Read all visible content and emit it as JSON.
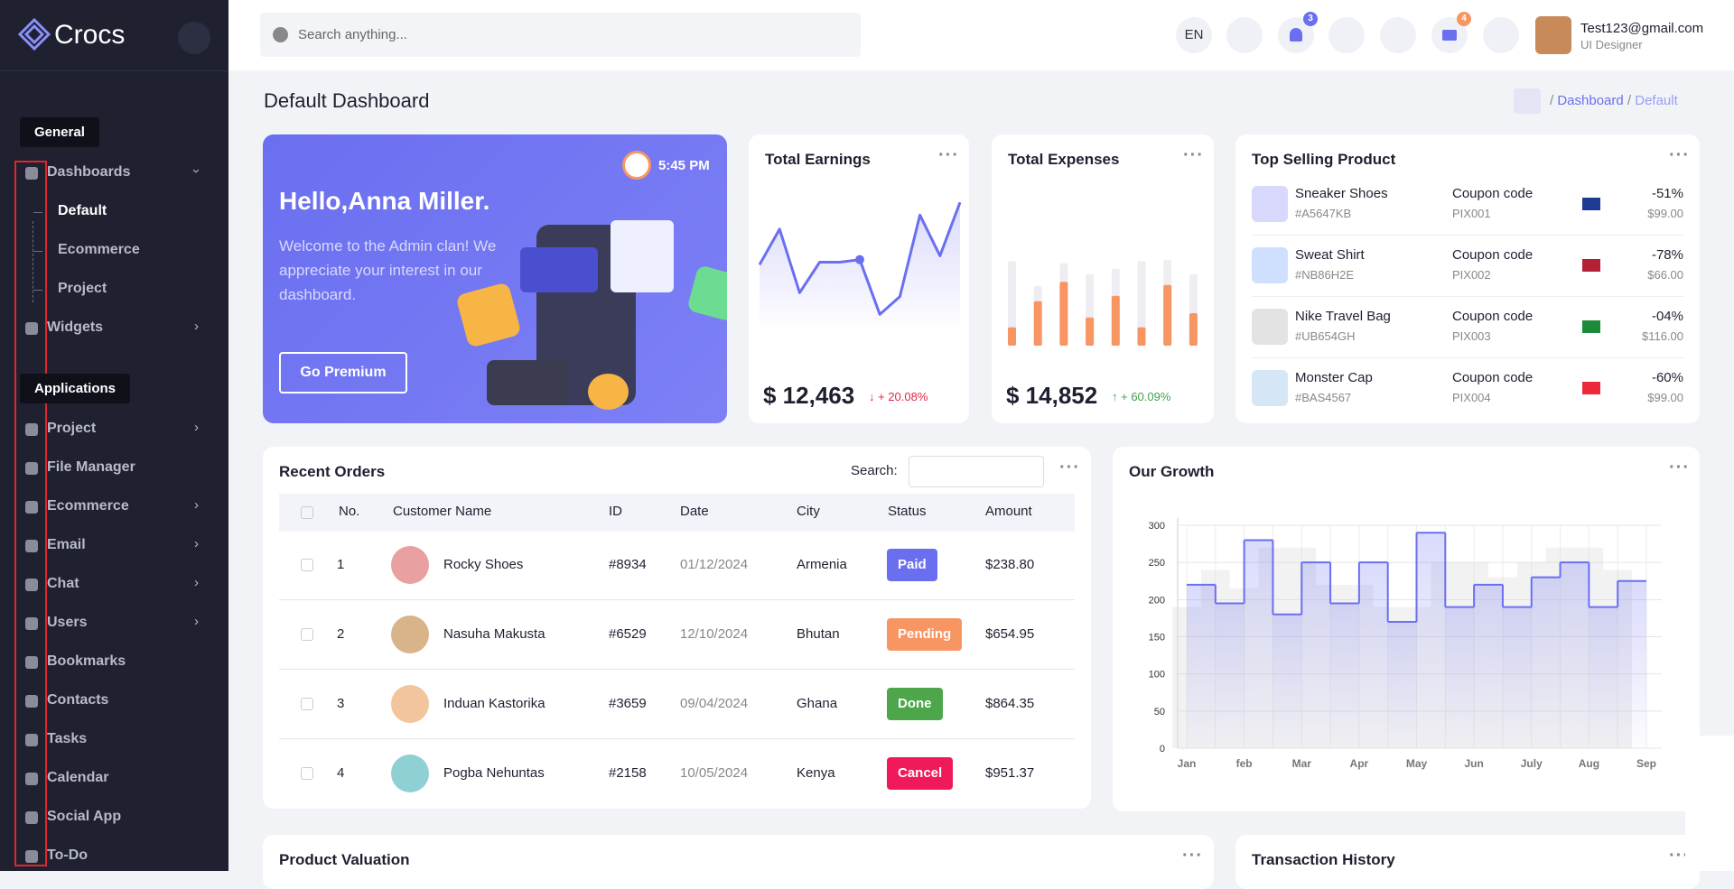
{
  "sidebar": {
    "brand": "Crocs",
    "sections": [
      {
        "title": "General",
        "items": [
          {
            "label": "Dashboards",
            "expandable": true,
            "open": true,
            "children": [
              "Default",
              "Ecommerce",
              "Project"
            ]
          },
          {
            "label": "Widgets",
            "expandable": true
          }
        ]
      },
      {
        "title": "Applications",
        "items": [
          {
            "label": "Project",
            "expandable": true
          },
          {
            "label": "File Manager"
          },
          {
            "label": "Ecommerce",
            "expandable": true
          },
          {
            "label": "Email",
            "expandable": true
          },
          {
            "label": "Chat",
            "expandable": true
          },
          {
            "label": "Users",
            "expandable": true
          },
          {
            "label": "Bookmarks"
          },
          {
            "label": "Contacts"
          },
          {
            "label": "Tasks"
          },
          {
            "label": "Calendar"
          },
          {
            "label": "Social App"
          },
          {
            "label": "To-Do"
          }
        ]
      }
    ]
  },
  "header": {
    "search_placeholder": "Search anything...",
    "language": "EN",
    "notifications": 3,
    "messages": 4,
    "user": {
      "email": "Test123@gmail.com",
      "role": "UI Designer"
    }
  },
  "page": {
    "title": "Default Dashboard",
    "breadcrumb": [
      "Dashboard",
      "Default"
    ]
  },
  "welcome": {
    "time": "5:45 PM",
    "greeting": "Hello,Anna Miller.",
    "text": "Welcome to the Admin clan! We appreciate your interest in our dashboard.",
    "button": "Go Premium"
  },
  "earnings": {
    "title": "Total Earnings",
    "amount": "$ 12,463",
    "change": "+ 20.08%",
    "values": [
      48,
      76,
      26,
      50,
      50,
      52,
      9,
      23,
      87,
      55,
      97
    ]
  },
  "expenses": {
    "title": "Total Expenses",
    "amount": "$ 14,852",
    "change": "+ 60.09%",
    "values": [
      17,
      41,
      59,
      26,
      46,
      17,
      56,
      30
    ],
    "max": [
      78,
      55,
      76,
      66,
      71,
      78,
      79,
      66
    ]
  },
  "top_selling": {
    "title": "Top Selling Product",
    "coupon_label": "Coupon code",
    "rows": [
      {
        "name": "Sneaker Shoes",
        "code": "#A5647KB",
        "coupon": "PIX001",
        "discount": "-51%",
        "price": "$99.00"
      },
      {
        "name": "Sweat Shirt",
        "code": "#NB86H2E",
        "coupon": "PIX002",
        "discount": "-78%",
        "price": "$66.00"
      },
      {
        "name": "Nike Travel Bag",
        "code": "#UB654GH",
        "coupon": "PIX003",
        "discount": "-04%",
        "price": "$116.00"
      },
      {
        "name": "Monster Cap",
        "code": "#BAS4567",
        "coupon": "PIX004",
        "discount": "-60%",
        "price": "$99.00"
      }
    ]
  },
  "orders": {
    "title": "Recent Orders",
    "search_label": "Search:",
    "columns": [
      "No.",
      "Customer Name",
      "ID",
      "Date",
      "City",
      "Status",
      "Amount"
    ],
    "rows": [
      {
        "no": 1,
        "customer": "Rocky Shoes",
        "id": "#8934",
        "date": "01/12/2024",
        "city": "Armenia",
        "status": "Paid",
        "amount": "$238.80"
      },
      {
        "no": 2,
        "customer": "Nasuha Makusta",
        "id": "#6529",
        "date": "12/10/2024",
        "city": "Bhutan",
        "status": "Pending",
        "amount": "$654.95"
      },
      {
        "no": 3,
        "customer": "Induan Kastorika",
        "id": "#3659",
        "date": "09/04/2024",
        "city": "Ghana",
        "status": "Done",
        "amount": "$864.35"
      },
      {
        "no": 4,
        "customer": "Pogba Nehuntas",
        "id": "#2158",
        "date": "10/05/2024",
        "city": "Kenya",
        "status": "Cancel",
        "amount": "$951.37"
      }
    ]
  },
  "growth": {
    "type": "step",
    "title": "Our Growth",
    "categories": [
      "Jan",
      null,
      "feb",
      null,
      "Mar",
      null,
      "Apr",
      null,
      "May",
      null,
      "Jun",
      null,
      "July",
      null,
      "Aug",
      null,
      "Sep"
    ],
    "ylim": [
      0,
      300
    ],
    "yticks": [
      0,
      50,
      100,
      150,
      200,
      250,
      300
    ],
    "grid": true,
    "series": [
      {
        "color": "#d9d9d9",
        "values": [
          190,
          240,
          215,
          270,
          270,
          220,
          220,
          190,
          190,
          250,
          250,
          230,
          250,
          270,
          270,
          240,
          null
        ]
      },
      {
        "color": "#6a6ff0",
        "values": [
          220,
          195,
          280,
          180,
          250,
          195,
          250,
          170,
          290,
          190,
          220,
          190,
          230,
          250,
          190,
          225,
          null
        ]
      }
    ]
  },
  "bottom": {
    "left": "Product Valuation",
    "right": "Transaction History"
  }
}
